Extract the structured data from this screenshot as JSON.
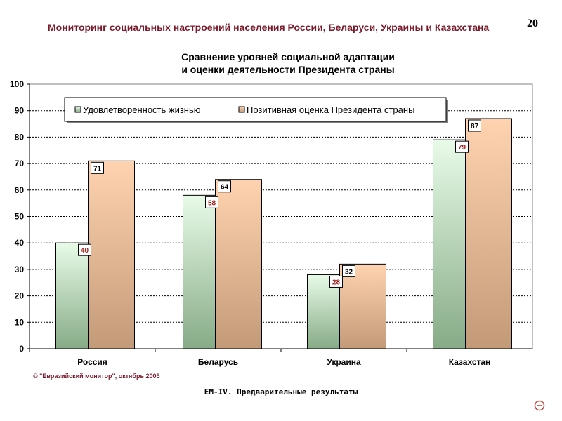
{
  "header": {
    "title": "Мониторинг социальных настроений населения России, Беларуси, Украины и Казахстана",
    "page_number": "20"
  },
  "footer": {
    "copyright": "© \"Евразийский монитор\", октябрь 2005",
    "note": "ЕМ-IV. Предварительные результаты"
  },
  "colors": {
    "series1_top": "#e8fbe8",
    "series1_bottom": "#86ab86",
    "series2_top": "#ffd3b0",
    "series2_bottom": "#c39a78",
    "header_text": "#7a1a2a",
    "label_series1": "#a0201a"
  },
  "chart_data": {
    "type": "bar",
    "title": "Сравнение уровней социальной адаптации\nи оценки деятельности Президента страны",
    "title_lines": [
      "Сравнение уровней социальной адаптации",
      "и оценки деятельности Президента страны"
    ],
    "categories": [
      "Россия",
      "Беларусь",
      "Украина",
      "Казахстан"
    ],
    "series": [
      {
        "name": "Удовлетворенность жизнью",
        "values": [
          40,
          58,
          28,
          79
        ],
        "labels": [
          "40",
          "58",
          "28",
          "79"
        ]
      },
      {
        "name": "Позитивная оценка Президента страны",
        "values": [
          71,
          64,
          32,
          87
        ],
        "labels": [
          "71",
          "64",
          "32",
          "87"
        ]
      }
    ],
    "xlabel": "",
    "ylabel": "",
    "ylim": [
      0,
      100
    ],
    "yticks": [
      "0",
      "10",
      "20",
      "30",
      "40",
      "50",
      "60",
      "70",
      "80",
      "90",
      "100"
    ],
    "grid": true,
    "legend": "top"
  }
}
